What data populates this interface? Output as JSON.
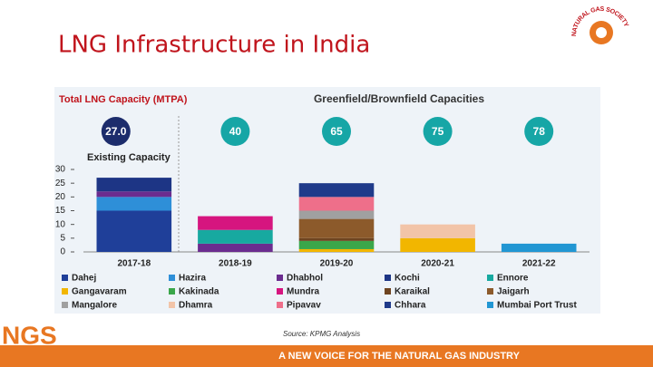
{
  "slide": {
    "title": "LNG Infrastructure in India",
    "logo_text": "NATURAL GAS SOCIETY",
    "brand": "NGS",
    "source": "Source: KPMG Analysis",
    "footer": "A NEW VOICE FOR THE NATURAL GAS INDUSTRY"
  },
  "chart_data": {
    "type": "bar",
    "stacked": true,
    "title": "Total LNG Capacity (MTPA)",
    "subtitle": "Greenfield/Brownfield Capacities",
    "annotation": "Existing Capacity",
    "categories": [
      "2017-18",
      "2018-19",
      "2019-20",
      "2020-21",
      "2021-22"
    ],
    "totals": {
      "values": [
        27,
        40,
        65,
        75,
        78
      ],
      "value_labels": [
        "27.0",
        "40",
        "65",
        "75",
        "78"
      ],
      "colors": [
        "#1c2c6c",
        "#16a6a6",
        "#16a6a6",
        "#16a6a6",
        "#16a6a6"
      ]
    },
    "series": [
      {
        "name": "Dahej",
        "color": "#1f3f99",
        "values": [
          15,
          null,
          null,
          null,
          null
        ]
      },
      {
        "name": "Hazira",
        "color": "#2e8fd8",
        "values": [
          5,
          null,
          null,
          null,
          null
        ]
      },
      {
        "name": "Dhabhol",
        "color": "#6b2c8f",
        "values": [
          2,
          3,
          null,
          null,
          null
        ]
      },
      {
        "name": "Kochi",
        "color": "#1d3585",
        "values": [
          5,
          null,
          null,
          null,
          null
        ]
      },
      {
        "name": "Ennore",
        "color": "#17a9a0",
        "values": [
          null,
          5,
          null,
          null,
          null
        ]
      },
      {
        "name": "Gangavaram",
        "color": "#f2b600",
        "values": [
          null,
          null,
          1,
          5,
          null
        ]
      },
      {
        "name": "Kakinada",
        "color": "#3aa64a",
        "values": [
          null,
          null,
          3,
          null,
          null
        ]
      },
      {
        "name": "Mundra",
        "color": "#d6157f",
        "values": [
          null,
          5,
          null,
          null,
          null
        ]
      },
      {
        "name": "Karaikal",
        "color": "#6e4420",
        "values": [
          null,
          null,
          1,
          null,
          null
        ]
      },
      {
        "name": "Jaigarh",
        "color": "#8c5a2b",
        "values": [
          null,
          null,
          7,
          null,
          null
        ]
      },
      {
        "name": "Mangalore",
        "color": "#a0a0a0",
        "values": [
          null,
          null,
          3,
          null,
          null
        ]
      },
      {
        "name": "Dhamra",
        "color": "#f2c4a8",
        "values": [
          null,
          null,
          null,
          5,
          null
        ]
      },
      {
        "name": "Pipavav",
        "color": "#ee6f8a",
        "values": [
          null,
          null,
          5,
          null,
          null
        ]
      },
      {
        "name": "Chhara",
        "color": "#1f3a8a",
        "values": [
          null,
          null,
          5,
          null,
          null
        ]
      },
      {
        "name": "Mumbai Port Trust",
        "color": "#2196d3",
        "values": [
          null,
          null,
          null,
          null,
          3
        ]
      }
    ],
    "ylim": [
      0,
      30
    ],
    "yticks": [
      0,
      5,
      10,
      15,
      20,
      25,
      30
    ],
    "grid": false
  }
}
